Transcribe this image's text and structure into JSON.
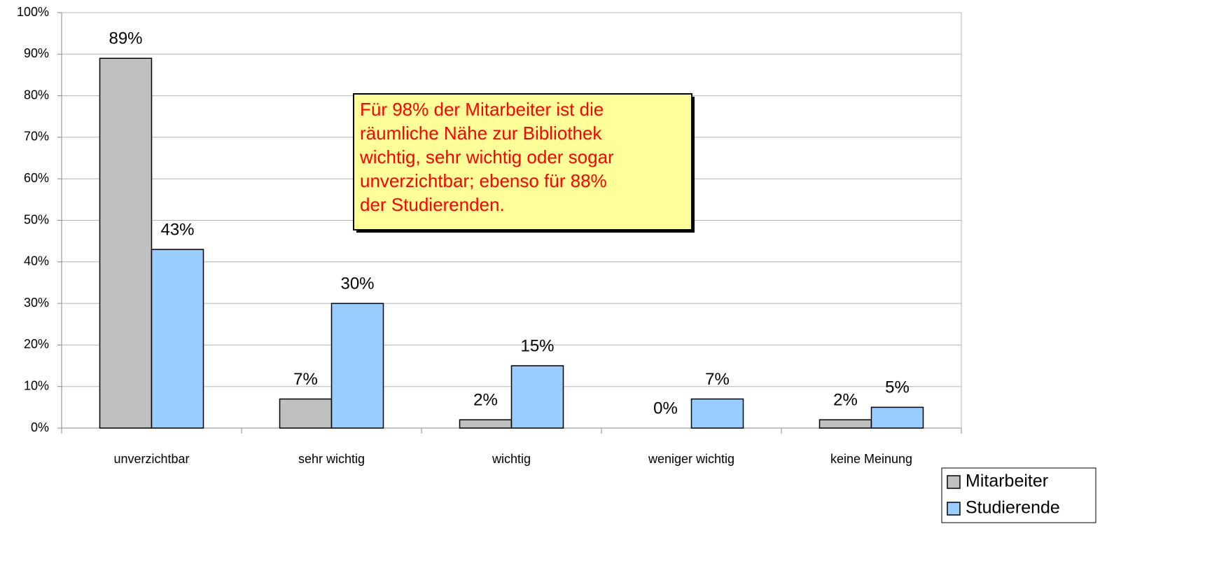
{
  "chart_data": {
    "type": "bar",
    "categories": [
      "unverzichtbar",
      "sehr wichtig",
      "wichtig",
      "weniger wichtig",
      "keine Meinung"
    ],
    "series": [
      {
        "name": "Mitarbeiter",
        "color": "#c0c0c0",
        "values": [
          89,
          7,
          2,
          0,
          2
        ],
        "value_labels": [
          "89%",
          "7%",
          "2%",
          "0%",
          "2%"
        ]
      },
      {
        "name": "Studierende",
        "color": "#99ccff",
        "values": [
          43,
          30,
          15,
          7,
          5
        ],
        "value_labels": [
          "43%",
          "30%",
          "15%",
          "7%",
          "5%"
        ]
      }
    ],
    "ylim": [
      0,
      100
    ],
    "yticks": [
      {
        "value": 0,
        "label": "0%"
      },
      {
        "value": 10,
        "label": "10%"
      },
      {
        "value": 20,
        "label": "20%"
      },
      {
        "value": 30,
        "label": "30%"
      },
      {
        "value": 40,
        "label": "40%"
      },
      {
        "value": 50,
        "label": "50%"
      },
      {
        "value": 60,
        "label": "60%"
      },
      {
        "value": 70,
        "label": "70%"
      },
      {
        "value": 80,
        "label": "80%"
      },
      {
        "value": 90,
        "label": "90%"
      },
      {
        "value": 100,
        "label": "100%"
      }
    ],
    "grid": true,
    "legend": "lower right",
    "annotation": [
      "Für 98% der Mitarbeiter ist die",
      "räumliche Nähe zur Bibliothek",
      "wichtig, sehr wichtig oder sogar",
      "unverzichtbar; ebenso für 88%",
      "der Studierenden."
    ]
  }
}
